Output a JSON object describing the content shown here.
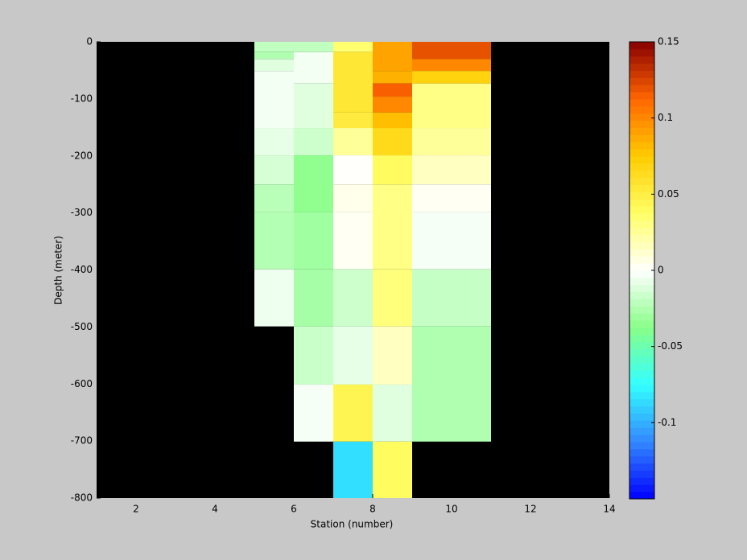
{
  "chart_data": {
    "type": "heatmap",
    "xlabel": "Station (number)",
    "ylabel": "Depth (meter)",
    "xlim": [
      1,
      14
    ],
    "ylim": [
      -800,
      0
    ],
    "xticks": [
      2,
      4,
      6,
      8,
      10,
      12,
      14
    ],
    "yticks": [
      0,
      -100,
      -200,
      -300,
      -400,
      -500,
      -600,
      -700,
      -800
    ],
    "clim": [
      -0.15,
      0.15
    ],
    "cticks": [
      -0.1,
      -0.05,
      0,
      0.05,
      0.1,
      0.15
    ],
    "colormap": [
      "#0000ff",
      "#3388ff",
      "#33ffff",
      "#88ff88",
      "#ffffff",
      "#ffff66",
      "#ffcc00",
      "#ff6600",
      "#880000"
    ],
    "nan_color": "#000000",
    "cells": [
      {
        "x": [
          5,
          6
        ],
        "y": [
          0,
          -18
        ],
        "value": -0.02
      },
      {
        "x": [
          5,
          6
        ],
        "y": [
          -18,
          -30
        ],
        "value": -0.025
      },
      {
        "x": [
          5,
          6
        ],
        "y": [
          -30,
          -51
        ],
        "value": -0.01
      },
      {
        "x": [
          5,
          6
        ],
        "y": [
          -51,
          -151
        ],
        "value": -0.004
      },
      {
        "x": [
          5,
          6
        ],
        "y": [
          -151,
          -199
        ],
        "value": -0.008
      },
      {
        "x": [
          5,
          6
        ],
        "y": [
          -199,
          -250
        ],
        "value": -0.013
      },
      {
        "x": [
          5,
          6
        ],
        "y": [
          -250,
          -299
        ],
        "value": -0.022
      },
      {
        "x": [
          5,
          6
        ],
        "y": [
          -299,
          -399
        ],
        "value": -0.024
      },
      {
        "x": [
          5,
          6
        ],
        "y": [
          -399,
          -499
        ],
        "value": -0.005
      },
      {
        "x": [
          6,
          7
        ],
        "y": [
          0,
          -18
        ],
        "value": -0.02
      },
      {
        "x": [
          6,
          7
        ],
        "y": [
          -18,
          -73
        ],
        "value": -0.004
      },
      {
        "x": [
          6,
          7
        ],
        "y": [
          -73,
          -151
        ],
        "value": -0.01
      },
      {
        "x": [
          6,
          7
        ],
        "y": [
          -151,
          -199
        ],
        "value": -0.016
      },
      {
        "x": [
          6,
          7
        ],
        "y": [
          -199,
          -299
        ],
        "value": -0.035
      },
      {
        "x": [
          6,
          7
        ],
        "y": [
          -299,
          -399
        ],
        "value": -0.03
      },
      {
        "x": [
          6,
          7
        ],
        "y": [
          -399,
          -499
        ],
        "value": -0.028
      },
      {
        "x": [
          6,
          7
        ],
        "y": [
          -499,
          -601
        ],
        "value": -0.017
      },
      {
        "x": [
          6,
          7
        ],
        "y": [
          -601,
          -701
        ],
        "value": -0.003
      },
      {
        "x": [
          7,
          8
        ],
        "y": [
          0,
          -18
        ],
        "value": 0.035
      },
      {
        "x": [
          7,
          8
        ],
        "y": [
          -18,
          -124
        ],
        "value": 0.055
      },
      {
        "x": [
          7,
          8
        ],
        "y": [
          -124,
          -151
        ],
        "value": 0.052
      },
      {
        "x": [
          7,
          8
        ],
        "y": [
          -151,
          -199
        ],
        "value": 0.025
      },
      {
        "x": [
          7,
          8
        ],
        "y": [
          -199,
          -250
        ],
        "value": 0.001
      },
      {
        "x": [
          7,
          8
        ],
        "y": [
          -250,
          -299
        ],
        "value": 0.005
      },
      {
        "x": [
          7,
          8
        ],
        "y": [
          -299,
          -399
        ],
        "value": 0.003
      },
      {
        "x": [
          7,
          8
        ],
        "y": [
          -399,
          -499
        ],
        "value": -0.016
      },
      {
        "x": [
          7,
          8
        ],
        "y": [
          -499,
          -601
        ],
        "value": -0.008
      },
      {
        "x": [
          7,
          8
        ],
        "y": [
          -601,
          -701
        ],
        "value": 0.045
      },
      {
        "x": [
          7,
          8
        ],
        "y": [
          -701,
          -800
        ],
        "value": -0.085
      },
      {
        "x": [
          8,
          9
        ],
        "y": [
          0,
          -51
        ],
        "value": 0.09
      },
      {
        "x": [
          8,
          9
        ],
        "y": [
          -51,
          -73
        ],
        "value": 0.085
      },
      {
        "x": [
          8,
          9
        ],
        "y": [
          -73,
          -96
        ],
        "value": 0.115
      },
      {
        "x": [
          8,
          9
        ],
        "y": [
          -96,
          -124
        ],
        "value": 0.1
      },
      {
        "x": [
          8,
          9
        ],
        "y": [
          -124,
          -151
        ],
        "value": 0.08
      },
      {
        "x": [
          8,
          9
        ],
        "y": [
          -151,
          -199
        ],
        "value": 0.065
      },
      {
        "x": [
          8,
          9
        ],
        "y": [
          -199,
          -250
        ],
        "value": 0.04
      },
      {
        "x": [
          8,
          9
        ],
        "y": [
          -250,
          -399
        ],
        "value": 0.03
      },
      {
        "x": [
          8,
          9
        ],
        "y": [
          -399,
          -499
        ],
        "value": 0.032
      },
      {
        "x": [
          8,
          9
        ],
        "y": [
          -499,
          -601
        ],
        "value": 0.015
      },
      {
        "x": [
          8,
          9
        ],
        "y": [
          -601,
          -701
        ],
        "value": -0.01
      },
      {
        "x": [
          8,
          9
        ],
        "y": [
          -701,
          -800
        ],
        "value": 0.04
      },
      {
        "x": [
          9,
          11
        ],
        "y": [
          0,
          -30
        ],
        "value": 0.12
      },
      {
        "x": [
          9,
          11
        ],
        "y": [
          -30,
          -51
        ],
        "value": 0.1
      },
      {
        "x": [
          9,
          11
        ],
        "y": [
          -51,
          -73
        ],
        "value": 0.07
      },
      {
        "x": [
          9,
          11
        ],
        "y": [
          -73,
          -151
        ],
        "value": 0.03
      },
      {
        "x": [
          9,
          11
        ],
        "y": [
          -151,
          -199
        ],
        "value": 0.025
      },
      {
        "x": [
          9,
          11
        ],
        "y": [
          -199,
          -250
        ],
        "value": 0.015
      },
      {
        "x": [
          9,
          11
        ],
        "y": [
          -250,
          -299
        ],
        "value": 0.003
      },
      {
        "x": [
          9,
          11
        ],
        "y": [
          -299,
          -399
        ],
        "value": -0.003
      },
      {
        "x": [
          9,
          11
        ],
        "y": [
          -399,
          -499
        ],
        "value": -0.018
      },
      {
        "x": [
          9,
          11
        ],
        "y": [
          -499,
          -701
        ],
        "value": -0.025
      }
    ]
  }
}
